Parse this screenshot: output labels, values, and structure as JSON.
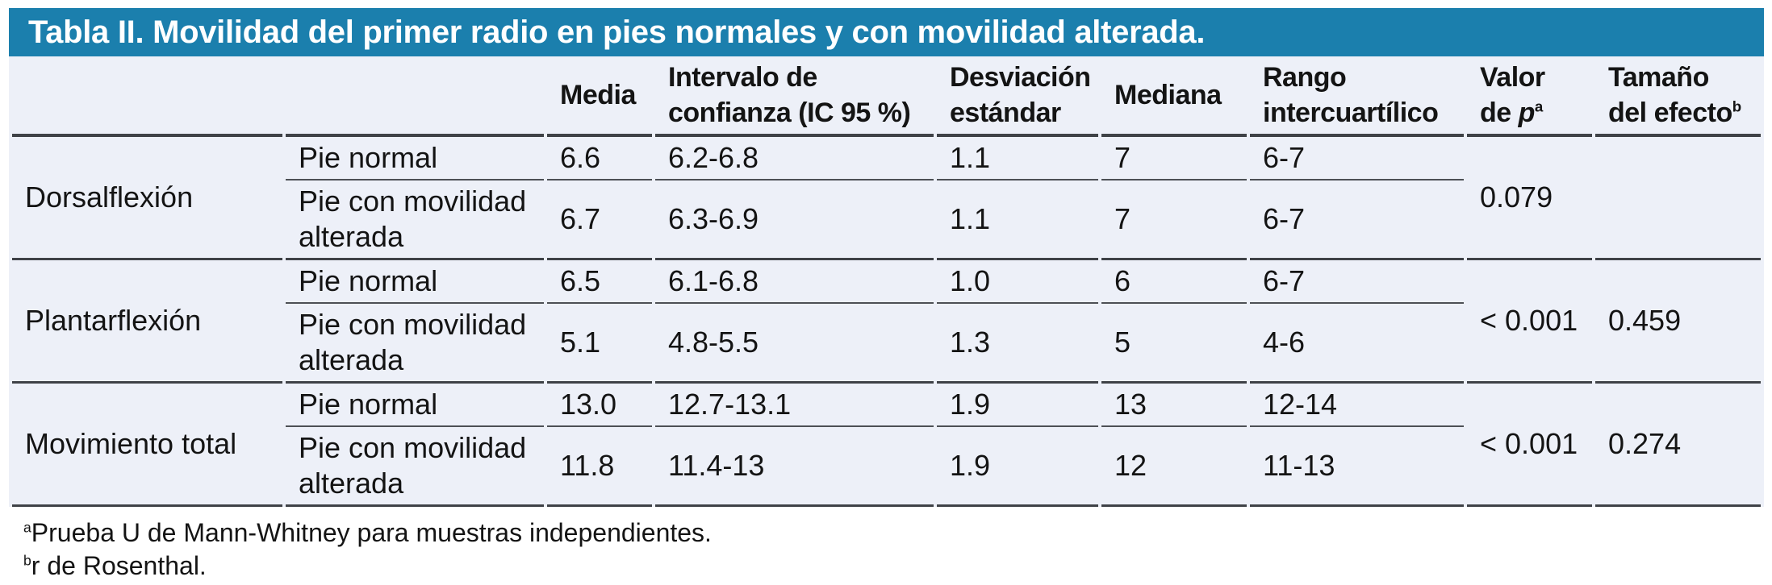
{
  "title": "Tabla II. Movilidad del primer radio en pies normales y con movilidad alterada.",
  "colors": {
    "title_bar_bg": "#1b7fad",
    "title_text": "#ffffff",
    "body_bg": "#edf0f8",
    "rule_dark": "#3f4247",
    "rule_thin": "#4d5055",
    "text": "#141414"
  },
  "columns": [
    {
      "lines": [
        "Media"
      ]
    },
    {
      "lines": [
        "Intervalo de",
        "confianza (IC 95 %)"
      ]
    },
    {
      "lines": [
        "Desviación",
        "estándar"
      ]
    },
    {
      "lines": [
        "Mediana"
      ]
    },
    {
      "lines": [
        "Rango",
        "intercuartílico"
      ]
    },
    {
      "lines": [
        "Valor",
        "de "
      ],
      "italic": "p",
      "sup": "a"
    },
    {
      "lines": [
        "Tamaño",
        "del efecto"
      ],
      "sup": "b"
    }
  ],
  "groups": [
    {
      "label": "Dorsalflexión",
      "p_value": "0.079",
      "effect_size": "",
      "rows": [
        {
          "condition": "Pie normal",
          "media": "6.6",
          "ic": "6.2-6.8",
          "sd": "1.1",
          "mediana": "7",
          "riq": "6-7"
        },
        {
          "condition": "Pie con movilidad\nalterada",
          "media": "6.7",
          "ic": "6.3-6.9",
          "sd": "1.1",
          "mediana": "7",
          "riq": "6-7"
        }
      ]
    },
    {
      "label": "Plantarflexión",
      "p_value": "< 0.001",
      "effect_size": "0.459",
      "rows": [
        {
          "condition": "Pie normal",
          "media": "6.5",
          "ic": "6.1-6.8",
          "sd": "1.0",
          "mediana": "6",
          "riq": "6-7"
        },
        {
          "condition": "Pie con movilidad\nalterada",
          "media": "5.1",
          "ic": "4.8-5.5",
          "sd": "1.3",
          "mediana": "5",
          "riq": "4-6"
        }
      ]
    },
    {
      "label": "Movimiento total",
      "p_value": "< 0.001",
      "effect_size": "0.274",
      "rows": [
        {
          "condition": "Pie normal",
          "media": "13.0",
          "ic": "12.7-13.1",
          "sd": "1.9",
          "mediana": "13",
          "riq": "12-14"
        },
        {
          "condition": "Pie con movilidad\nalterada",
          "media": "11.8",
          "ic": "11.4-13",
          "sd": "1.9",
          "mediana": "12",
          "riq": "11-13"
        }
      ]
    }
  ],
  "footnotes": [
    {
      "sup": "a",
      "text": "Prueba U de Mann-Whitney para muestras independientes."
    },
    {
      "sup": "b",
      "text": "r de Rosenthal."
    }
  ]
}
